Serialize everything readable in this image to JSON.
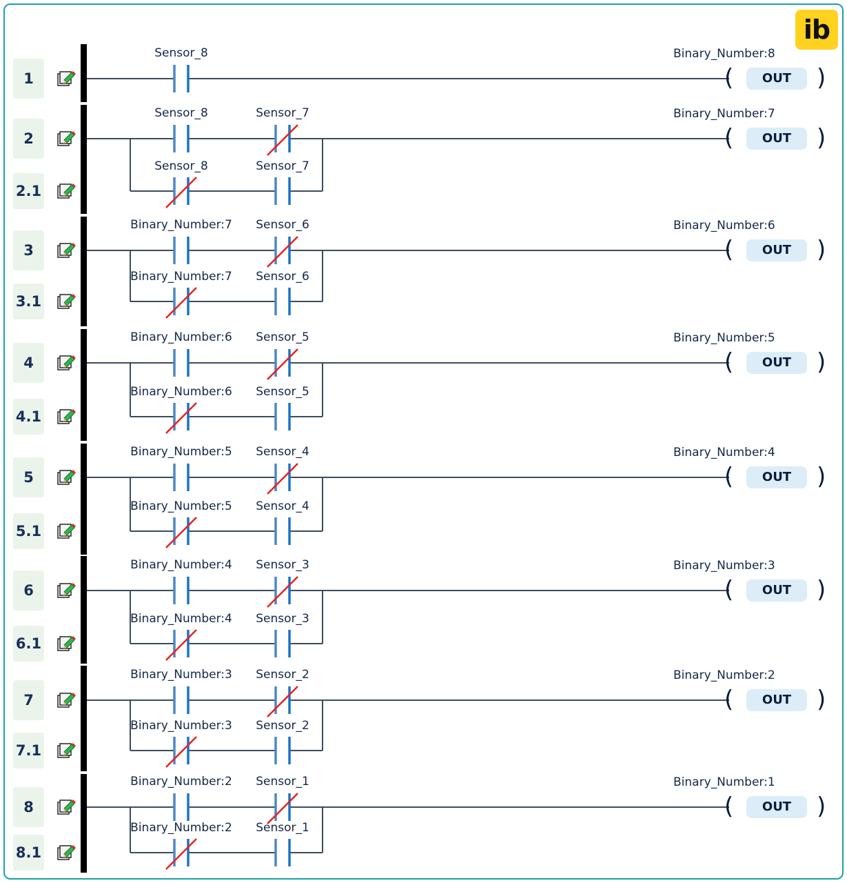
{
  "logo": "ib",
  "rungs": [
    {
      "num": "1",
      "branch_num": null,
      "contacts": [
        {
          "label": "Sensor_8",
          "nc": false
        }
      ],
      "branch_contacts": null,
      "coil_label": "Binary_Number:8",
      "coil_text": "OUT"
    },
    {
      "num": "2",
      "branch_num": "2.1",
      "contacts": [
        {
          "label": "Sensor_8",
          "nc": false
        },
        {
          "label": "Sensor_7",
          "nc": true
        }
      ],
      "branch_contacts": [
        {
          "label": "Sensor_8",
          "nc": true
        },
        {
          "label": "Sensor_7",
          "nc": false
        }
      ],
      "coil_label": "Binary_Number:7",
      "coil_text": "OUT"
    },
    {
      "num": "3",
      "branch_num": "3.1",
      "contacts": [
        {
          "label": "Binary_Number:7",
          "nc": false
        },
        {
          "label": "Sensor_6",
          "nc": true
        }
      ],
      "branch_contacts": [
        {
          "label": "Binary_Number:7",
          "nc": true
        },
        {
          "label": "Sensor_6",
          "nc": false
        }
      ],
      "coil_label": "Binary_Number:6",
      "coil_text": "OUT"
    },
    {
      "num": "4",
      "branch_num": "4.1",
      "contacts": [
        {
          "label": "Binary_Number:6",
          "nc": false
        },
        {
          "label": "Sensor_5",
          "nc": true
        }
      ],
      "branch_contacts": [
        {
          "label": "Binary_Number:6",
          "nc": true
        },
        {
          "label": "Sensor_5",
          "nc": false
        }
      ],
      "coil_label": "Binary_Number:5",
      "coil_text": "OUT"
    },
    {
      "num": "5",
      "branch_num": "5.1",
      "contacts": [
        {
          "label": "Binary_Number:5",
          "nc": false
        },
        {
          "label": "Sensor_4",
          "nc": true
        }
      ],
      "branch_contacts": [
        {
          "label": "Binary_Number:5",
          "nc": true
        },
        {
          "label": "Sensor_4",
          "nc": false
        }
      ],
      "coil_label": "Binary_Number:4",
      "coil_text": "OUT"
    },
    {
      "num": "6",
      "branch_num": "6.1",
      "contacts": [
        {
          "label": "Binary_Number:4",
          "nc": false
        },
        {
          "label": "Sensor_3",
          "nc": true
        }
      ],
      "branch_contacts": [
        {
          "label": "Binary_Number:4",
          "nc": true
        },
        {
          "label": "Sensor_3",
          "nc": false
        }
      ],
      "coil_label": "Binary_Number:3",
      "coil_text": "OUT"
    },
    {
      "num": "7",
      "branch_num": "7.1",
      "contacts": [
        {
          "label": "Binary_Number:3",
          "nc": false
        },
        {
          "label": "Sensor_2",
          "nc": true
        }
      ],
      "branch_contacts": [
        {
          "label": "Binary_Number:3",
          "nc": true
        },
        {
          "label": "Sensor_2",
          "nc": false
        }
      ],
      "coil_label": "Binary_Number:2",
      "coil_text": "OUT"
    },
    {
      "num": "8",
      "branch_num": "8.1",
      "contacts": [
        {
          "label": "Binary_Number:2",
          "nc": false
        },
        {
          "label": "Sensor_1",
          "nc": true
        }
      ],
      "branch_contacts": [
        {
          "label": "Binary_Number:2",
          "nc": true
        },
        {
          "label": "Sensor_1",
          "nc": false
        }
      ],
      "coil_label": "Binary_Number:1",
      "coil_text": "OUT"
    }
  ],
  "colors": {
    "wire": "#3d4a5c",
    "contact": "#1a72c8",
    "slash": "#e8201c",
    "rail": "#000000",
    "rung_box": "#eaf4ea",
    "coil_fill": "#dcedf8",
    "border": "#16a3a6",
    "logo": "#ffd21f"
  }
}
